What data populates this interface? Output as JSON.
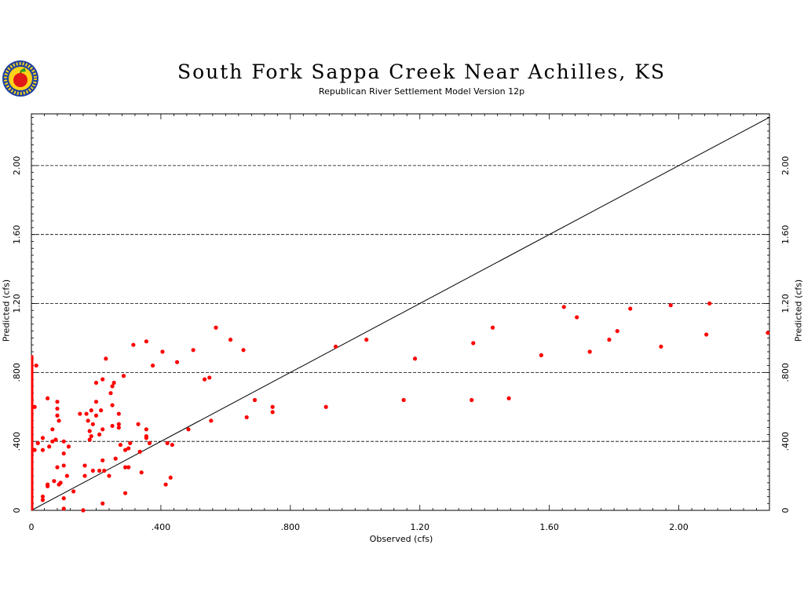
{
  "header": {
    "title": "South Fork Sappa Creek Near Achilles, KS",
    "subtitle": "Republican River Settlement Model Version 12p",
    "logo_icon": "apple-seal-logo"
  },
  "colors": {
    "points": "#ff0000",
    "grid": "#000000",
    "axis": "#000000"
  },
  "chart_data": {
    "type": "scatter",
    "xlabel": "Observed (cfs)",
    "ylabel": "Predicted (cfs)",
    "xlim": [
      0,
      2.28
    ],
    "ylim": [
      0,
      2.3
    ],
    "x_ticks": [
      0,
      0.4,
      0.8,
      1.2,
      1.6,
      2.0
    ],
    "x_tick_labels": [
      "0",
      ".400",
      ".800",
      "1.20",
      "1.60",
      "2.00"
    ],
    "y_ticks": [
      0,
      0.4,
      0.8,
      1.2,
      1.6,
      2.0
    ],
    "y_tick_labels": [
      "0",
      ".400",
      ".800",
      "1.20",
      "1.60",
      "2.00"
    ],
    "gridlines_y": [
      0.4,
      0.8,
      1.2,
      1.6,
      2.0
    ],
    "grid_style": "dashed horizontal",
    "reference_line": {
      "type": "1:1",
      "from": [
        0,
        0
      ],
      "to": [
        2.28,
        2.28
      ]
    },
    "zero_observed_range": [
      0,
      0.9
    ],
    "points": [
      [
        0.01,
        0.35
      ],
      [
        0.01,
        0.6
      ],
      [
        0.015,
        0.84
      ],
      [
        0.02,
        0.39
      ],
      [
        0.035,
        0.35
      ],
      [
        0.035,
        0.42
      ],
      [
        0.035,
        0.08
      ],
      [
        0.035,
        0.06
      ],
      [
        0.05,
        0.65
      ],
      [
        0.05,
        0.15
      ],
      [
        0.05,
        0.14
      ],
      [
        0.055,
        0.37
      ],
      [
        0.065,
        0.4
      ],
      [
        0.065,
        0.47
      ],
      [
        0.07,
        0.17
      ],
      [
        0.075,
        0.41
      ],
      [
        0.08,
        0.63
      ],
      [
        0.08,
        0.59
      ],
      [
        0.08,
        0.55
      ],
      [
        0.08,
        0.25
      ],
      [
        0.085,
        0.52
      ],
      [
        0.085,
        0.15
      ],
      [
        0.09,
        0.16
      ],
      [
        0.1,
        0.4
      ],
      [
        0.1,
        0.33
      ],
      [
        0.1,
        0.26
      ],
      [
        0.1,
        0.07
      ],
      [
        0.1,
        0.01
      ],
      [
        0.11,
        0.2
      ],
      [
        0.115,
        0.37
      ],
      [
        0.13,
        0.11
      ],
      [
        0.15,
        0.56
      ],
      [
        0.16,
        0.0
      ],
      [
        0.165,
        0.2
      ],
      [
        0.165,
        0.26
      ],
      [
        0.17,
        0.56
      ],
      [
        0.175,
        0.52
      ],
      [
        0.18,
        0.46
      ],
      [
        0.18,
        0.41
      ],
      [
        0.185,
        0.58
      ],
      [
        0.185,
        0.43
      ],
      [
        0.19,
        0.5
      ],
      [
        0.19,
        0.23
      ],
      [
        0.2,
        0.63
      ],
      [
        0.2,
        0.74
      ],
      [
        0.2,
        0.55
      ],
      [
        0.21,
        0.44
      ],
      [
        0.21,
        0.23
      ],
      [
        0.215,
        0.58
      ],
      [
        0.22,
        0.47
      ],
      [
        0.22,
        0.76
      ],
      [
        0.22,
        0.29
      ],
      [
        0.22,
        0.04
      ],
      [
        0.225,
        0.23
      ],
      [
        0.23,
        0.88
      ],
      [
        0.24,
        0.2
      ],
      [
        0.245,
        0.68
      ],
      [
        0.25,
        0.72
      ],
      [
        0.25,
        0.61
      ],
      [
        0.25,
        0.49
      ],
      [
        0.255,
        0.74
      ],
      [
        0.26,
        0.3
      ],
      [
        0.27,
        0.56
      ],
      [
        0.27,
        0.5
      ],
      [
        0.27,
        0.48
      ],
      [
        0.275,
        0.38
      ],
      [
        0.285,
        0.78
      ],
      [
        0.29,
        0.35
      ],
      [
        0.29,
        0.25
      ],
      [
        0.29,
        0.1
      ],
      [
        0.3,
        0.36
      ],
      [
        0.3,
        0.25
      ],
      [
        0.305,
        0.39
      ],
      [
        0.315,
        0.96
      ],
      [
        0.33,
        0.5
      ],
      [
        0.335,
        0.34
      ],
      [
        0.34,
        0.22
      ],
      [
        0.355,
        0.98
      ],
      [
        0.355,
        0.47
      ],
      [
        0.355,
        0.43
      ],
      [
        0.355,
        0.42
      ],
      [
        0.365,
        0.39
      ],
      [
        0.375,
        0.84
      ],
      [
        0.405,
        0.92
      ],
      [
        0.415,
        0.15
      ],
      [
        0.42,
        0.39
      ],
      [
        0.43,
        0.19
      ],
      [
        0.435,
        0.38
      ],
      [
        0.45,
        0.86
      ],
      [
        0.485,
        0.47
      ],
      [
        0.5,
        0.93
      ],
      [
        0.535,
        0.76
      ],
      [
        0.55,
        0.77
      ],
      [
        0.555,
        0.52
      ],
      [
        0.57,
        1.06
      ],
      [
        0.615,
        0.99
      ],
      [
        0.655,
        0.93
      ],
      [
        0.665,
        0.54
      ],
      [
        0.69,
        0.64
      ],
      [
        0.745,
        0.6
      ],
      [
        0.745,
        0.57
      ],
      [
        0.91,
        0.6
      ],
      [
        0.94,
        0.95
      ],
      [
        1.035,
        0.99
      ],
      [
        1.15,
        0.64
      ],
      [
        1.185,
        0.88
      ],
      [
        1.36,
        0.64
      ],
      [
        1.365,
        0.97
      ],
      [
        1.425,
        1.06
      ],
      [
        1.475,
        0.65
      ],
      [
        1.575,
        0.9
      ],
      [
        1.645,
        1.18
      ],
      [
        1.685,
        1.12
      ],
      [
        1.725,
        0.92
      ],
      [
        1.785,
        0.99
      ],
      [
        1.81,
        1.04
      ],
      [
        1.85,
        1.17
      ],
      [
        1.945,
        0.95
      ],
      [
        1.975,
        1.19
      ],
      [
        2.085,
        1.02
      ],
      [
        2.095,
        1.2
      ],
      [
        2.275,
        1.03
      ]
    ]
  }
}
